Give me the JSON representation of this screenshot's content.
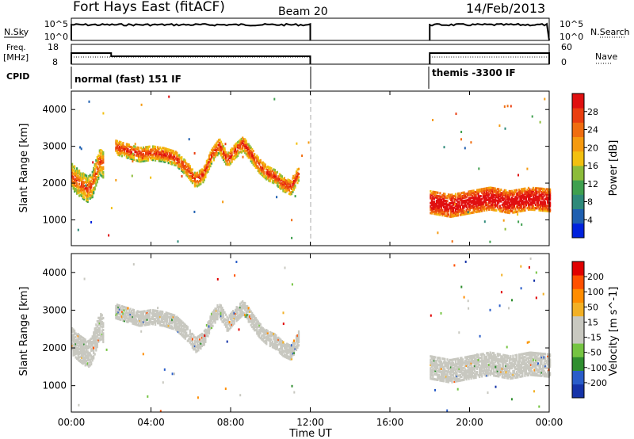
{
  "header": {
    "station": "Fort Hays East (fitACF)",
    "beam": "Beam 20",
    "date": "14/Feb/2013"
  },
  "status_panels": {
    "nsky_label": "N.Sky",
    "nsearch_label": "N.Search",
    "freq_label": "Freq.",
    "freq_unit": "[MHz]",
    "nave_label": "Nave",
    "cpid_label": "CPID",
    "left_ticks_noise": [
      "10^5",
      "10^0"
    ],
    "right_ticks_noise": [
      "10^5",
      "10^0"
    ],
    "left_ticks_freq": [
      "18",
      "8"
    ],
    "right_ticks_nave": [
      "60",
      "0"
    ],
    "freq_values_mhz": [
      {
        "from": 0.0,
        "to": 2.0,
        "value": 14.5
      },
      {
        "from": 2.0,
        "to": 12.0,
        "value": 12.5
      },
      {
        "from": 18.0,
        "to": 24.0,
        "value": 14.5
      }
    ],
    "nave_level": 24,
    "cpid_segments": [
      {
        "from": 0.0,
        "to": 12.0,
        "label": "normal (fast) 151 IF"
      },
      {
        "from": 18.0,
        "to": 24.0,
        "label": "themis -3300 IF"
      }
    ]
  },
  "chart_data": {
    "type": "heatmap",
    "x_range_hours": [
      0,
      24
    ],
    "ylim": [
      300,
      4500
    ],
    "xlabel": "Time UT",
    "xticks": [
      "00:00",
      "04:00",
      "08:00",
      "12:00",
      "16:00",
      "20:00",
      "00:00"
    ],
    "yticks": [
      1000,
      2000,
      3000,
      4000
    ],
    "data_gap_hours": [
      12.0,
      18.0
    ],
    "panels": [
      {
        "quantity": "power",
        "ylabel": "Slant Range [km]",
        "colorbar_label": "Power [dB]",
        "colorbar_ticks": [
          "28",
          "24",
          "20",
          "16",
          "12",
          "8",
          "4"
        ],
        "color_scale": [
          "#0022dd",
          "#1e5fb0",
          "#2e8a7a",
          "#3fa04f",
          "#8cbc3a",
          "#f2c010",
          "#f59a10",
          "#f06d10",
          "#ea3e10",
          "#e01010"
        ],
        "value_range": [
          0,
          30
        ],
        "echo_bands": [
          {
            "t": [
              0.0,
              0.4,
              0.8,
              1.0,
              1.2,
              1.4,
              1.6
            ],
            "center_km": [
              2200,
              2000,
              1850,
              1950,
              2300,
              2600,
              2500
            ],
            "width_km": 700,
            "power_db": 18
          },
          {
            "t": [
              2.2,
              2.8,
              3.4,
              4.0,
              4.6,
              5.2,
              5.8,
              6.2,
              6.6,
              7.0,
              7.4,
              7.8,
              8.2,
              8.6,
              9.0,
              9.4,
              9.8,
              10.2,
              10.6,
              11.0,
              11.4
            ],
            "center_km": [
              3000,
              2900,
              2800,
              2850,
              2800,
              2700,
              2400,
              2100,
              2250,
              2750,
              3050,
              2650,
              2900,
              3100,
              2800,
              2500,
              2300,
              2200,
              2000,
              1900,
              2300
            ],
            "width_km": 400,
            "power_db": 20
          },
          {
            "t": [
              18.0,
              19.0,
              20.0,
              21.0,
              22.0,
              23.0,
              24.0
            ],
            "center_km": [
              1500,
              1400,
              1500,
              1600,
              1500,
              1600,
              1550
            ],
            "width_km": 600,
            "power_db": 26
          }
        ]
      },
      {
        "quantity": "velocity",
        "ylabel": "Slant Range [km]",
        "colorbar_label": "Velocity [m s^-1]",
        "colorbar_ticks": [
          "200",
          "100",
          "50",
          "15",
          "-15",
          "-50",
          "-100",
          "-200"
        ],
        "color_scale": [
          "#1533a8",
          "#2a5dc9",
          "#2f8e2f",
          "#75c442",
          "#c8c8c0",
          "#c8c8c0",
          "#f2b025",
          "#ff8c00",
          "#ff5000",
          "#e00000"
        ],
        "value_range": [
          -250,
          250
        ],
        "ground_scatter_color": "#c8c8c0",
        "echo_bands": [
          {
            "t": [
              0.0,
              0.4,
              0.8,
              1.0,
              1.2,
              1.4,
              1.6
            ],
            "center_km": [
              2200,
              2000,
              1850,
              1950,
              2300,
              2600,
              2500
            ],
            "width_km": 700,
            "velocity": 0
          },
          {
            "t": [
              2.2,
              2.8,
              3.4,
              4.0,
              4.6,
              5.2,
              5.8,
              6.2,
              6.6,
              7.0,
              7.4,
              7.8,
              8.2,
              8.6,
              9.0,
              9.4,
              9.8,
              10.2,
              10.6,
              11.0,
              11.4
            ],
            "center_km": [
              3000,
              2900,
              2800,
              2850,
              2800,
              2700,
              2400,
              2100,
              2250,
              2750,
              3050,
              2650,
              2900,
              3100,
              2800,
              2500,
              2300,
              2200,
              2000,
              1900,
              2300
            ],
            "width_km": 400,
            "velocity": 20
          },
          {
            "t": [
              18.0,
              19.0,
              20.0,
              21.0,
              22.0,
              23.0,
              24.0
            ],
            "center_km": [
              1500,
              1400,
              1500,
              1600,
              1500,
              1600,
              1550
            ],
            "width_km": 600,
            "velocity": 0
          }
        ]
      }
    ]
  }
}
